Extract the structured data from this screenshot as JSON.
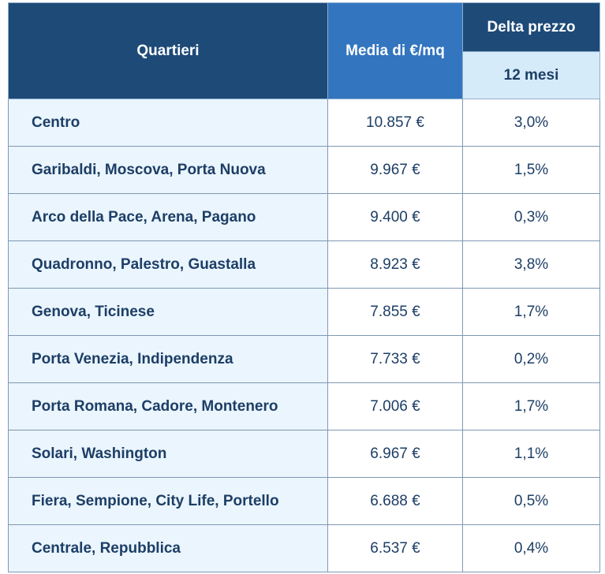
{
  "table": {
    "headers": {
      "quartieri": "Quartieri",
      "media": "Media di €/mq",
      "delta": "Delta prezzo",
      "period": "12 mesi"
    },
    "rows": [
      {
        "quartiere": "Centro",
        "media": "10.857 €",
        "delta": "3,0%"
      },
      {
        "quartiere": "Garibaldi, Moscova, Porta Nuova",
        "media": "9.967 €",
        "delta": "1,5%"
      },
      {
        "quartiere": "Arco della Pace, Arena, Pagano",
        "media": "9.400 €",
        "delta": "0,3%"
      },
      {
        "quartiere": "Quadronno, Palestro, Guastalla",
        "media": "8.923 €",
        "delta": "3,8%"
      },
      {
        "quartiere": "Genova, Ticinese",
        "media": "7.855 €",
        "delta": "1,7%"
      },
      {
        "quartiere": "Porta Venezia, Indipendenza",
        "media": "7.733 €",
        "delta": "0,2%"
      },
      {
        "quartiere": "Porta Romana, Cadore, Montenero",
        "media": "7.006 €",
        "delta": "1,7%"
      },
      {
        "quartiere": "Solari, Washington",
        "media": "6.967 €",
        "delta": "1,1%"
      },
      {
        "quartiere": "Fiera, Sempione, City Life, Portello",
        "media": "6.688 €",
        "delta": "0,5%"
      },
      {
        "quartiere": "Centrale, Repubblica",
        "media": "6.537 €",
        "delta": "0,4%"
      }
    ],
    "colors": {
      "header_dark": "#1e4a78",
      "header_accent": "#3375bf",
      "header_light": "#d6ebfa",
      "row_label_bg": "#eaf5fd",
      "text": "#1d3e66"
    }
  }
}
